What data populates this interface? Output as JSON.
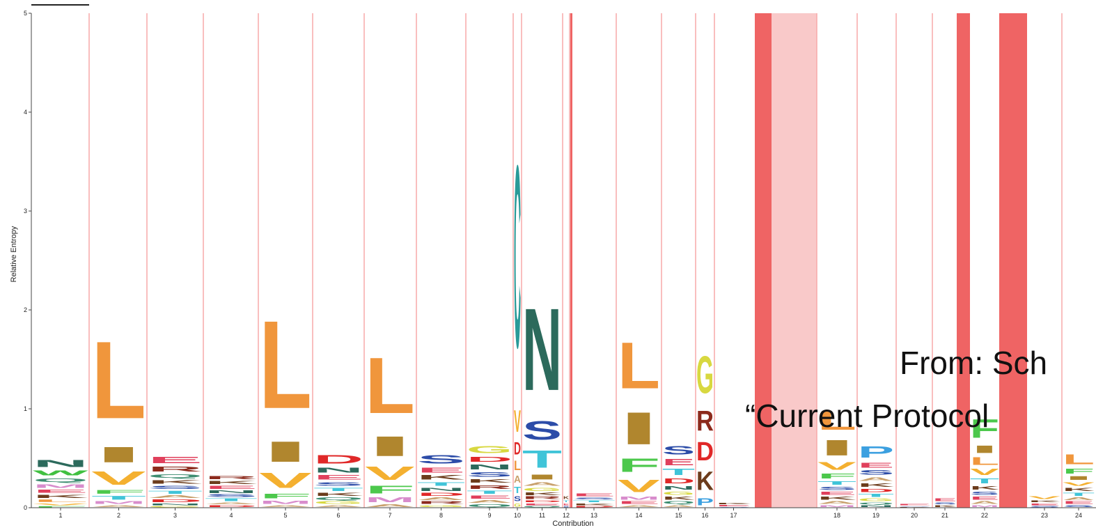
{
  "chart_data": {
    "type": "sequence-logo",
    "xlabel": "Contribution",
    "ylabel": "Relative Entropy",
    "ylim": [
      0,
      5
    ],
    "yticks": [
      "0",
      "1",
      "2",
      "3",
      "4",
      "5"
    ],
    "colors": {
      "divider": "#f7a9a9",
      "gap": "#ef6464",
      "gap_light": "#f9c9c9",
      "L": "#f0963c",
      "I": "#b0862e",
      "V": "#f4b030",
      "F": "#4cc84c",
      "M": "#d88ccc",
      "N": "#2c6a5c",
      "C": "#2a9a98",
      "S": "#2c4ca8",
      "T": "#40c4d8",
      "G": "#d8d840",
      "D": "#e02828",
      "E": "#e0405c",
      "R": "#8c2a1c",
      "K": "#6c3c1c",
      "P": "#3ca0e0",
      "A": "#c8a06c",
      "Q": "#3c8c70",
      "Y": "#88b040",
      "H": "#7070d8",
      "W": "#40c040"
    },
    "positions": [
      {
        "label": "1",
        "stack": [
          [
            "N",
            0.12
          ],
          [
            "W",
            0.08
          ],
          [
            "M",
            0.06
          ],
          [
            "Q",
            0.06
          ],
          [
            "K",
            0.05
          ],
          [
            "E",
            0.05
          ],
          [
            "L",
            0.04
          ],
          [
            "V",
            0.03
          ],
          [
            "F",
            0.02
          ]
        ]
      },
      {
        "label": "2",
        "stack": [
          [
            "L",
            1.25
          ],
          [
            "I",
            0.25
          ],
          [
            "V",
            0.22
          ],
          [
            "T",
            0.06
          ],
          [
            "F",
            0.06
          ],
          [
            "M",
            0.04
          ],
          [
            "A",
            0.03
          ]
        ]
      },
      {
        "label": "3",
        "stack": [
          [
            "E",
            0.1
          ],
          [
            "R",
            0.08
          ],
          [
            "K",
            0.06
          ],
          [
            "Q",
            0.06
          ],
          [
            "T",
            0.05
          ],
          [
            "S",
            0.05
          ],
          [
            "D",
            0.04
          ],
          [
            "A",
            0.04
          ],
          [
            "N",
            0.03
          ],
          [
            "G",
            0.02
          ]
        ]
      },
      {
        "label": "4",
        "stack": [
          [
            "E",
            0.05
          ],
          [
            "K",
            0.05
          ],
          [
            "R",
            0.05
          ],
          [
            "T",
            0.04
          ],
          [
            "S",
            0.04
          ],
          [
            "N",
            0.04
          ],
          [
            "D",
            0.03
          ],
          [
            "A",
            0.03
          ]
        ]
      },
      {
        "label": "5",
        "stack": [
          [
            "L",
            1.42
          ],
          [
            "I",
            0.33
          ],
          [
            "V",
            0.25
          ],
          [
            "F",
            0.07
          ],
          [
            "M",
            0.05
          ],
          [
            "A",
            0.03
          ]
        ]
      },
      {
        "label": "6",
        "stack": [
          [
            "D",
            0.14
          ],
          [
            "N",
            0.08
          ],
          [
            "E",
            0.07
          ],
          [
            "S",
            0.06
          ],
          [
            "K",
            0.05
          ],
          [
            "T",
            0.05
          ],
          [
            "G",
            0.04
          ],
          [
            "Q",
            0.04
          ],
          [
            "A",
            0.03
          ]
        ]
      },
      {
        "label": "7",
        "stack": [
          [
            "L",
            0.9
          ],
          [
            "I",
            0.32
          ],
          [
            "V",
            0.22
          ],
          [
            "F",
            0.12
          ],
          [
            "M",
            0.08
          ],
          [
            "A",
            0.04
          ]
        ]
      },
      {
        "label": "8",
        "stack": [
          [
            "S",
            0.14
          ],
          [
            "E",
            0.08
          ],
          [
            "K",
            0.07
          ],
          [
            "T",
            0.06
          ],
          [
            "D",
            0.05
          ],
          [
            "N",
            0.05
          ],
          [
            "R",
            0.04
          ],
          [
            "A",
            0.04
          ],
          [
            "G",
            0.03
          ]
        ]
      },
      {
        "label": "9",
        "stack": [
          [
            "G",
            0.12
          ],
          [
            "N",
            0.08
          ],
          [
            "D",
            0.08
          ],
          [
            "S",
            0.07
          ],
          [
            "R",
            0.06
          ],
          [
            "K",
            0.06
          ],
          [
            "E",
            0.05
          ],
          [
            "T",
            0.05
          ],
          [
            "Q",
            0.04
          ],
          [
            "A",
            0.04
          ]
        ]
      },
      {
        "label": "10",
        "stack": [
          [
            "C",
            2.95
          ],
          [
            "V",
            0.35
          ],
          [
            "D",
            0.2
          ],
          [
            "L",
            0.15
          ],
          [
            "A",
            0.12
          ],
          [
            "T",
            0.1
          ],
          [
            "S",
            0.08
          ],
          [
            "G",
            0.05
          ]
        ]
      },
      {
        "label": "11",
        "stack": [
          [
            "N",
            1.33
          ],
          [
            "S",
            0.3
          ],
          [
            "T",
            0.28
          ],
          [
            "I",
            0.08
          ],
          [
            "A",
            0.06
          ],
          [
            "G",
            0.05
          ],
          [
            "R",
            0.04
          ],
          [
            "K",
            0.04
          ],
          [
            "E",
            0.03
          ],
          [
            "D",
            0.03
          ],
          [
            "Q",
            0.02
          ]
        ]
      },
      {
        "label": "12",
        "stack": [
          [
            "K",
            0.04
          ],
          [
            "E",
            0.03
          ],
          [
            "T",
            0.03
          ],
          [
            "S",
            0.02
          ]
        ]
      },
      {
        "label": "13",
        "stack": [
          [
            "E",
            0.04
          ],
          [
            "K",
            0.03
          ],
          [
            "T",
            0.03
          ],
          [
            "S",
            0.03
          ],
          [
            "D",
            0.02
          ]
        ]
      },
      {
        "label": "14",
        "stack": [
          [
            "L",
            0.75
          ],
          [
            "I",
            0.52
          ],
          [
            "F",
            0.22
          ],
          [
            "V",
            0.2
          ],
          [
            "M",
            0.05
          ],
          [
            "E",
            0.04
          ],
          [
            "A",
            0.03
          ]
        ]
      },
      {
        "label": "15",
        "stack": [
          [
            "S",
            0.14
          ],
          [
            "T",
            0.1
          ],
          [
            "E",
            0.1
          ],
          [
            "D",
            0.08
          ],
          [
            "N",
            0.06
          ],
          [
            "K",
            0.05
          ],
          [
            "G",
            0.05
          ],
          [
            "Q",
            0.04
          ],
          [
            "A",
            0.03
          ]
        ]
      },
      {
        "label": "16",
        "stack": [
          [
            "G",
            0.6
          ],
          [
            "R",
            0.32
          ],
          [
            "K",
            0.3
          ],
          [
            "D",
            0.3
          ],
          [
            "P",
            0.12
          ]
        ]
      },
      {
        "label": "17",
        "stack": [
          [
            "E",
            0.02
          ],
          [
            "K",
            0.02
          ],
          [
            "S",
            0.01
          ]
        ]
      },
      {
        "label": "18",
        "stack": [
          [
            "L",
            0.3
          ],
          [
            "I",
            0.25
          ],
          [
            "V",
            0.12
          ],
          [
            "F",
            0.08
          ],
          [
            "T",
            0.06
          ],
          [
            "K",
            0.05
          ],
          [
            "E",
            0.05
          ],
          [
            "S",
            0.05
          ],
          [
            "A",
            0.04
          ],
          [
            "M",
            0.03
          ]
        ]
      },
      {
        "label": "19",
        "stack": [
          [
            "P",
            0.18
          ],
          [
            "E",
            0.08
          ],
          [
            "S",
            0.07
          ],
          [
            "K",
            0.06
          ],
          [
            "A",
            0.06
          ],
          [
            "T",
            0.05
          ],
          [
            "D",
            0.05
          ],
          [
            "G",
            0.04
          ],
          [
            "N",
            0.03
          ],
          [
            "Q",
            0.03
          ]
        ]
      },
      {
        "label": "20",
        "stack": [
          [
            "E",
            0.02
          ],
          [
            "K",
            0.01
          ],
          [
            "S",
            0.01
          ]
        ]
      },
      {
        "label": "21",
        "stack": [
          [
            "E",
            0.04
          ],
          [
            "K",
            0.03
          ],
          [
            "S",
            0.03
          ]
        ]
      },
      {
        "label": "22",
        "stack": [
          [
            "L",
            0.12
          ],
          [
            "F",
            0.3
          ],
          [
            "I",
            0.12
          ],
          [
            "V",
            0.1
          ],
          [
            "T",
            0.08
          ],
          [
            "K",
            0.06
          ],
          [
            "E",
            0.05
          ],
          [
            "S",
            0.05
          ],
          [
            "A",
            0.04
          ],
          [
            "M",
            0.03
          ]
        ]
      },
      {
        "label": "23",
        "stack": [
          [
            "V",
            0.04
          ],
          [
            "E",
            0.03
          ],
          [
            "K",
            0.03
          ],
          [
            "S",
            0.02
          ]
        ]
      },
      {
        "label": "24",
        "stack": [
          [
            "L",
            0.16
          ],
          [
            "F",
            0.08
          ],
          [
            "V",
            0.06
          ],
          [
            "I",
            0.06
          ],
          [
            "T",
            0.05
          ],
          [
            "K",
            0.05
          ],
          [
            "E",
            0.04
          ],
          [
            "A",
            0.04
          ],
          [
            "S",
            0.03
          ]
        ]
      }
    ]
  },
  "overlay": {
    "line1": "From: Sch",
    "line2": "“Current Protocol"
  }
}
